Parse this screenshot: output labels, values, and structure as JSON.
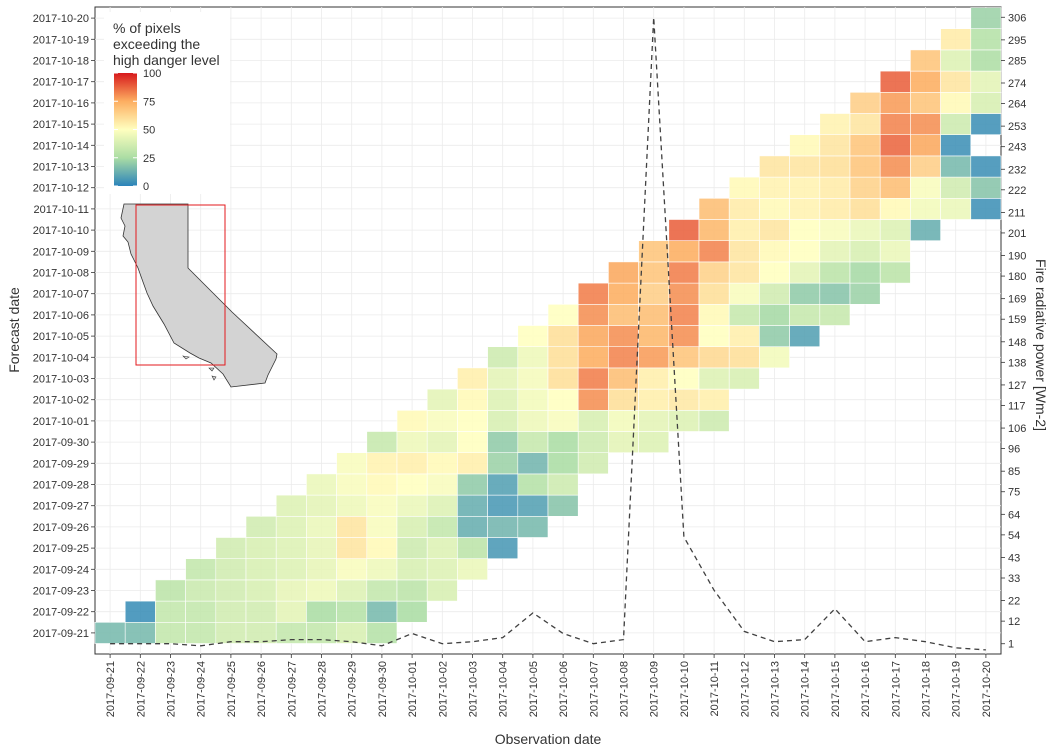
{
  "chart_data": {
    "type": "heatmap",
    "xlabel": "Observation date",
    "ylabel": "Forecast date",
    "y2label": "Fire radiative power [Wm-2]",
    "dates": [
      "2017-09-21",
      "2017-09-22",
      "2017-09-23",
      "2017-09-24",
      "2017-09-25",
      "2017-09-26",
      "2017-09-27",
      "2017-09-28",
      "2017-09-29",
      "2017-09-30",
      "2017-10-01",
      "2017-10-02",
      "2017-10-03",
      "2017-10-04",
      "2017-10-05",
      "2017-10-06",
      "2017-10-07",
      "2017-10-08",
      "2017-10-09",
      "2017-10-10",
      "2017-10-11",
      "2017-10-12",
      "2017-10-13",
      "2017-10-14",
      "2017-10-15",
      "2017-10-16",
      "2017-10-17",
      "2017-10-18",
      "2017-10-19",
      "2017-10-20"
    ],
    "y2_ticks": [
      "1",
      "12",
      "22",
      "33",
      "43",
      "54",
      "64",
      "75",
      "85",
      "96",
      "106",
      "117",
      "127",
      "138",
      "148",
      "159",
      "169",
      "180",
      "190",
      "201",
      "211",
      "222",
      "232",
      "243",
      "253",
      "264",
      "274",
      "285",
      "295",
      "306"
    ],
    "y2_range": [
      -4,
      311
    ],
    "legend": {
      "title": [
        "% of pixels",
        "exceeding the",
        "high danger level"
      ],
      "ticks": [
        "100",
        "75",
        "50",
        "25",
        "0"
      ],
      "placement": "top-left",
      "colors": [
        "#2b83ba",
        "#abdda4",
        "#ffffbf",
        "#fdae61",
        "#d7191c"
      ]
    },
    "inset_map": "california-with-red-bounding-box",
    "grid": true,
    "rows": [
      {
        "forecast": "2017-09-21",
        "values": [
          15,
          15,
          32,
          32,
          36,
          36,
          32,
          32,
          38,
          28
        ]
      },
      {
        "forecast": "2017-09-22",
        "values": [
          3,
          32,
          32,
          36,
          36,
          42,
          25,
          28,
          15,
          25
        ]
      },
      {
        "forecast": "2017-09-23",
        "values": [
          30,
          34,
          36,
          38,
          43,
          45,
          40,
          32,
          30,
          38
        ]
      },
      {
        "forecast": "2017-09-24",
        "values": [
          32,
          36,
          38,
          40,
          43,
          48,
          45,
          38,
          40,
          44
        ]
      },
      {
        "forecast": "2017-09-25",
        "values": [
          36,
          38,
          40,
          43,
          58,
          52,
          35,
          40,
          30,
          6
        ]
      },
      {
        "forecast": "2017-09-26",
        "values": [
          36,
          40,
          44,
          58,
          48,
          38,
          32,
          12,
          14,
          15
        ]
      },
      {
        "forecast": "2017-09-27",
        "values": [
          40,
          42,
          45,
          48,
          44,
          40,
          12,
          6,
          8,
          18
        ]
      },
      {
        "forecast": "2017-09-28",
        "values": [
          44,
          48,
          52,
          50,
          48,
          20,
          8,
          28,
          35
        ]
      },
      {
        "forecast": "2017-09-29",
        "values": [
          48,
          54,
          55,
          52,
          55,
          22,
          14,
          25,
          36
        ]
      },
      {
        "forecast": "2017-09-30",
        "values": [
          33,
          45,
          42,
          50,
          20,
          33,
          25,
          35,
          42,
          40
        ]
      },
      {
        "forecast": "2017-10-01",
        "values": [
          52,
          48,
          50,
          38,
          45,
          48,
          38,
          46,
          42,
          40,
          35
        ]
      },
      {
        "forecast": "2017-10-02",
        "values": [
          42,
          52,
          40,
          46,
          50,
          80,
          60,
          55,
          57,
          55
        ]
      },
      {
        "forecast": "2017-10-03",
        "values": [
          55,
          42,
          47,
          60,
          83,
          70,
          55,
          50,
          40,
          38
        ]
      },
      {
        "forecast": "2017-10-04",
        "values": [
          35,
          45,
          60,
          75,
          82,
          78,
          68,
          62,
          60,
          46
        ]
      },
      {
        "forecast": "2017-10-05",
        "values": [
          50,
          60,
          76,
          80,
          72,
          80,
          50,
          55,
          20,
          8
        ]
      },
      {
        "forecast": "2017-10-06",
        "values": [
          50,
          80,
          70,
          70,
          82,
          52,
          33,
          24,
          33,
          33
        ]
      },
      {
        "forecast": "2017-10-07",
        "values": [
          83,
          75,
          65,
          80,
          60,
          48,
          36,
          20,
          18,
          22
        ]
      },
      {
        "forecast": "2017-10-08",
        "values": [
          76,
          68,
          83,
          64,
          58,
          50,
          42,
          30,
          24,
          30
        ]
      },
      {
        "forecast": "2017-10-09",
        "values": [
          68,
          75,
          82,
          58,
          52,
          50,
          42,
          38,
          44
        ]
      },
      {
        "forecast": "2017-10-10",
        "values": [
          88,
          72,
          55,
          58,
          50,
          48,
          44,
          40,
          12
        ]
      },
      {
        "forecast": "2017-10-11",
        "values": [
          70,
          56,
          52,
          54,
          56,
          60,
          52,
          46,
          44,
          4
        ]
      },
      {
        "forecast": "2017-10-12",
        "values": [
          52,
          54,
          54,
          56,
          64,
          70,
          48,
          36,
          18
        ]
      },
      {
        "forecast": "2017-10-13",
        "values": [
          58,
          58,
          60,
          68,
          80,
          65,
          15,
          4
        ]
      },
      {
        "forecast": "2017-10-14",
        "values": [
          52,
          58,
          68,
          87,
          76,
          4
        ]
      },
      {
        "forecast": "2017-10-15",
        "values": [
          54,
          58,
          82,
          80,
          35,
          4
        ]
      },
      {
        "forecast": "2017-10-16",
        "values": [
          65,
          78,
          68,
          52,
          38
        ]
      },
      {
        "forecast": "2017-10-17",
        "values": [
          88,
          75,
          58,
          42
        ]
      },
      {
        "forecast": "2017-10-18",
        "values": [
          68,
          40,
          26
        ]
      },
      {
        "forecast": "2017-10-19",
        "values": [
          56,
          28
        ]
      },
      {
        "forecast": "2017-10-20",
        "values": [
          22
        ]
      }
    ],
    "frp_series": {
      "style": "dashed",
      "values": [
        1,
        1,
        1,
        0,
        2,
        2,
        3,
        3,
        2,
        0,
        6,
        1,
        2,
        4,
        16,
        6,
        1,
        3,
        306,
        53,
        27,
        7,
        2,
        3,
        18,
        2,
        4,
        2,
        -1,
        -2
      ]
    }
  }
}
